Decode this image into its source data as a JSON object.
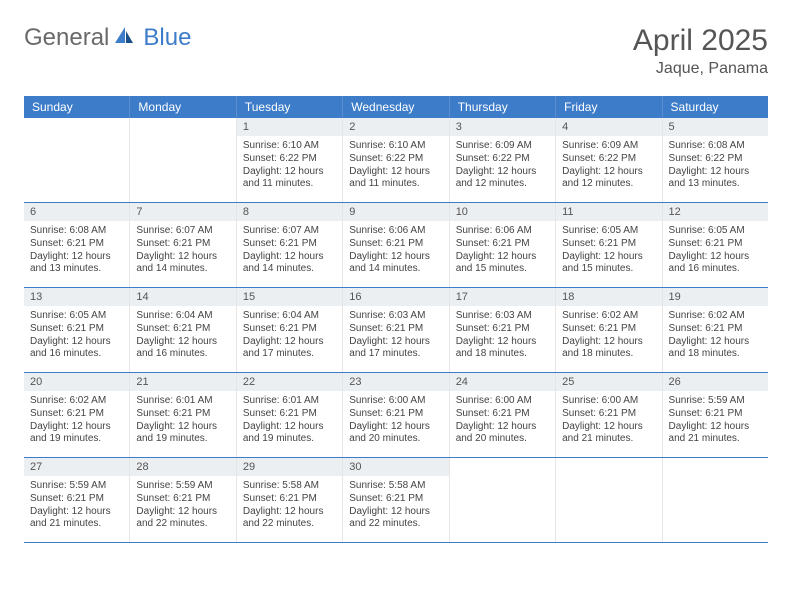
{
  "logo": {
    "text_general": "General",
    "text_blue": "Blue"
  },
  "title": "April 2025",
  "location": "Jaque, Panama",
  "colors": {
    "header_bg": "#3d7cc9",
    "header_text": "#ffffff",
    "daynum_bg": "#eceff1",
    "border": "#3d7cc9",
    "cell_border": "#e6e6e6",
    "text": "#444444",
    "title_text": "#555555"
  },
  "weekdays": [
    "Sunday",
    "Monday",
    "Tuesday",
    "Wednesday",
    "Thursday",
    "Friday",
    "Saturday"
  ],
  "weeks": [
    [
      null,
      null,
      {
        "n": "1",
        "sunrise": "Sunrise: 6:10 AM",
        "sunset": "Sunset: 6:22 PM",
        "daylight": "Daylight: 12 hours and 11 minutes."
      },
      {
        "n": "2",
        "sunrise": "Sunrise: 6:10 AM",
        "sunset": "Sunset: 6:22 PM",
        "daylight": "Daylight: 12 hours and 11 minutes."
      },
      {
        "n": "3",
        "sunrise": "Sunrise: 6:09 AM",
        "sunset": "Sunset: 6:22 PM",
        "daylight": "Daylight: 12 hours and 12 minutes."
      },
      {
        "n": "4",
        "sunrise": "Sunrise: 6:09 AM",
        "sunset": "Sunset: 6:22 PM",
        "daylight": "Daylight: 12 hours and 12 minutes."
      },
      {
        "n": "5",
        "sunrise": "Sunrise: 6:08 AM",
        "sunset": "Sunset: 6:22 PM",
        "daylight": "Daylight: 12 hours and 13 minutes."
      }
    ],
    [
      {
        "n": "6",
        "sunrise": "Sunrise: 6:08 AM",
        "sunset": "Sunset: 6:21 PM",
        "daylight": "Daylight: 12 hours and 13 minutes."
      },
      {
        "n": "7",
        "sunrise": "Sunrise: 6:07 AM",
        "sunset": "Sunset: 6:21 PM",
        "daylight": "Daylight: 12 hours and 14 minutes."
      },
      {
        "n": "8",
        "sunrise": "Sunrise: 6:07 AM",
        "sunset": "Sunset: 6:21 PM",
        "daylight": "Daylight: 12 hours and 14 minutes."
      },
      {
        "n": "9",
        "sunrise": "Sunrise: 6:06 AM",
        "sunset": "Sunset: 6:21 PM",
        "daylight": "Daylight: 12 hours and 14 minutes."
      },
      {
        "n": "10",
        "sunrise": "Sunrise: 6:06 AM",
        "sunset": "Sunset: 6:21 PM",
        "daylight": "Daylight: 12 hours and 15 minutes."
      },
      {
        "n": "11",
        "sunrise": "Sunrise: 6:05 AM",
        "sunset": "Sunset: 6:21 PM",
        "daylight": "Daylight: 12 hours and 15 minutes."
      },
      {
        "n": "12",
        "sunrise": "Sunrise: 6:05 AM",
        "sunset": "Sunset: 6:21 PM",
        "daylight": "Daylight: 12 hours and 16 minutes."
      }
    ],
    [
      {
        "n": "13",
        "sunrise": "Sunrise: 6:05 AM",
        "sunset": "Sunset: 6:21 PM",
        "daylight": "Daylight: 12 hours and 16 minutes."
      },
      {
        "n": "14",
        "sunrise": "Sunrise: 6:04 AM",
        "sunset": "Sunset: 6:21 PM",
        "daylight": "Daylight: 12 hours and 16 minutes."
      },
      {
        "n": "15",
        "sunrise": "Sunrise: 6:04 AM",
        "sunset": "Sunset: 6:21 PM",
        "daylight": "Daylight: 12 hours and 17 minutes."
      },
      {
        "n": "16",
        "sunrise": "Sunrise: 6:03 AM",
        "sunset": "Sunset: 6:21 PM",
        "daylight": "Daylight: 12 hours and 17 minutes."
      },
      {
        "n": "17",
        "sunrise": "Sunrise: 6:03 AM",
        "sunset": "Sunset: 6:21 PM",
        "daylight": "Daylight: 12 hours and 18 minutes."
      },
      {
        "n": "18",
        "sunrise": "Sunrise: 6:02 AM",
        "sunset": "Sunset: 6:21 PM",
        "daylight": "Daylight: 12 hours and 18 minutes."
      },
      {
        "n": "19",
        "sunrise": "Sunrise: 6:02 AM",
        "sunset": "Sunset: 6:21 PM",
        "daylight": "Daylight: 12 hours and 18 minutes."
      }
    ],
    [
      {
        "n": "20",
        "sunrise": "Sunrise: 6:02 AM",
        "sunset": "Sunset: 6:21 PM",
        "daylight": "Daylight: 12 hours and 19 minutes."
      },
      {
        "n": "21",
        "sunrise": "Sunrise: 6:01 AM",
        "sunset": "Sunset: 6:21 PM",
        "daylight": "Daylight: 12 hours and 19 minutes."
      },
      {
        "n": "22",
        "sunrise": "Sunrise: 6:01 AM",
        "sunset": "Sunset: 6:21 PM",
        "daylight": "Daylight: 12 hours and 19 minutes."
      },
      {
        "n": "23",
        "sunrise": "Sunrise: 6:00 AM",
        "sunset": "Sunset: 6:21 PM",
        "daylight": "Daylight: 12 hours and 20 minutes."
      },
      {
        "n": "24",
        "sunrise": "Sunrise: 6:00 AM",
        "sunset": "Sunset: 6:21 PM",
        "daylight": "Daylight: 12 hours and 20 minutes."
      },
      {
        "n": "25",
        "sunrise": "Sunrise: 6:00 AM",
        "sunset": "Sunset: 6:21 PM",
        "daylight": "Daylight: 12 hours and 21 minutes."
      },
      {
        "n": "26",
        "sunrise": "Sunrise: 5:59 AM",
        "sunset": "Sunset: 6:21 PM",
        "daylight": "Daylight: 12 hours and 21 minutes."
      }
    ],
    [
      {
        "n": "27",
        "sunrise": "Sunrise: 5:59 AM",
        "sunset": "Sunset: 6:21 PM",
        "daylight": "Daylight: 12 hours and 21 minutes."
      },
      {
        "n": "28",
        "sunrise": "Sunrise: 5:59 AM",
        "sunset": "Sunset: 6:21 PM",
        "daylight": "Daylight: 12 hours and 22 minutes."
      },
      {
        "n": "29",
        "sunrise": "Sunrise: 5:58 AM",
        "sunset": "Sunset: 6:21 PM",
        "daylight": "Daylight: 12 hours and 22 minutes."
      },
      {
        "n": "30",
        "sunrise": "Sunrise: 5:58 AM",
        "sunset": "Sunset: 6:21 PM",
        "daylight": "Daylight: 12 hours and 22 minutes."
      },
      null,
      null,
      null
    ]
  ]
}
